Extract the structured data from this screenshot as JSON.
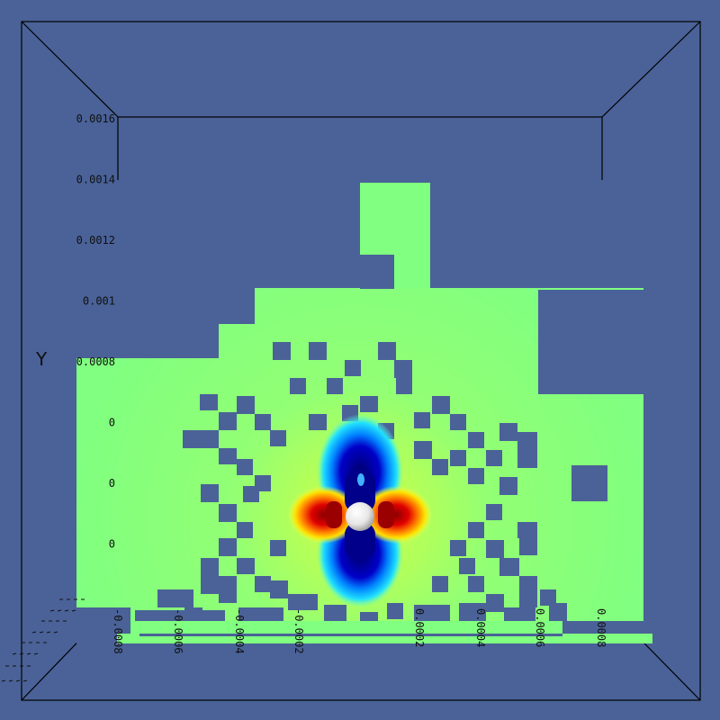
{
  "chart_data": {
    "type": "heatmap",
    "title": "",
    "xlabel": "",
    "ylabel": "Y",
    "xlim": [
      -0.0009,
      0.0009
    ],
    "ylim": [
      -0.0002,
      0.0016
    ],
    "y_ticks": [
      "0.0016",
      "0.0014",
      "0.0012",
      "0.001",
      "0.0008",
      "0",
      "0",
      "0"
    ],
    "x_ticks": [
      "-0.0008",
      "-0.0006",
      "-0.0004",
      "-0.0002",
      "0.0002",
      "0.0004",
      "0.0006",
      "0.0008"
    ],
    "grid": false,
    "colormap": "jet",
    "colors": {
      "background": "#4a6298",
      "uniform_cell": "#80ff80",
      "box_edge": "#000000",
      "sphere": "#f2f2f2"
    },
    "field": {
      "description_units": "dipole-like field around central sphere",
      "positive_lobe_color": "#d00000",
      "negative_lobe_color": "#00008a"
    },
    "sphere_icon": "sphere-icon"
  }
}
